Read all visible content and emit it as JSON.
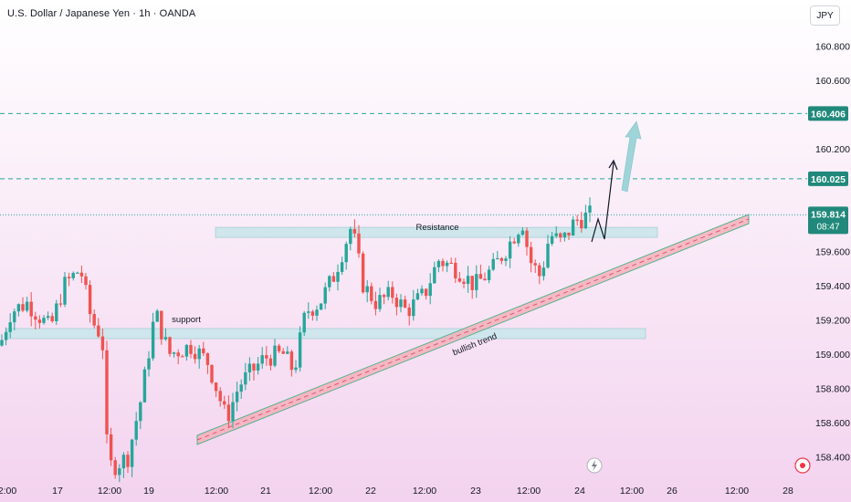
{
  "header": {
    "title": "U.S. Dollar / Japanese Yen · 1h · OANDA",
    "currency": "JPY"
  },
  "price_axis": {
    "ticks": [
      "160.800",
      "160.600",
      "160.200",
      "159.600",
      "159.400",
      "159.200",
      "159.000",
      "158.800",
      "158.600",
      "158.400"
    ],
    "tag_upper": "160.406",
    "tag_lower": "160.025",
    "last_price": "159.814",
    "countdown": "08:47"
  },
  "time_axis": {
    "labels": [
      "2:00",
      "17",
      "12:00",
      "19",
      "12:00",
      "21",
      "12:00",
      "22",
      "12:00",
      "23",
      "12:00",
      "24",
      "12:00",
      "26",
      "12:00",
      "28"
    ]
  },
  "annotations": {
    "resistance": "Resistance",
    "support": "support",
    "trend": "bullish trend"
  },
  "colors": {
    "up": "#26a69a",
    "down": "#ef5350",
    "level_line": "#26a69a",
    "tag_bg": "#21897b",
    "zone_fill": "#cfe6ec",
    "channel_fill": "#f4a9b4",
    "projection_arrow": "#9fd4d8",
    "bg_top": "#ffffff",
    "bg_bottom": "#f3d3ef"
  },
  "chart_data": {
    "type": "candlestick",
    "title": "U.S. Dollar / Japanese Yen · 1h · OANDA",
    "x_axis": "time (hourly)",
    "ylim": [
      158.35,
      160.95
    ],
    "levels": [
      160.406,
      160.025
    ],
    "last_price": 159.814,
    "resistance_zone": [
      159.68,
      159.73
    ],
    "support_zone": [
      159.09,
      159.16
    ],
    "trend_channel": {
      "from": {
        "x": "20 02:00",
        "y": 158.55
      },
      "to": {
        "x": "25 17:00",
        "y": 159.85
      }
    },
    "ohlc_closes": [
      159.05,
      159.25,
      159.18,
      159.3,
      159.1,
      159.2,
      159.4,
      159.5,
      159.35,
      159.2,
      158.3,
      158.45,
      158.95,
      159.05,
      159.0,
      158.85,
      158.65,
      158.8,
      159.0,
      159.15,
      158.9,
      159.35,
      159.5,
      159.7,
      159.4,
      159.25,
      159.35,
      159.2,
      159.3,
      159.5,
      159.6,
      159.45,
      159.55,
      159.7,
      159.75,
      159.62,
      159.5,
      159.35,
      159.6,
      159.75,
      159.82
    ]
  }
}
